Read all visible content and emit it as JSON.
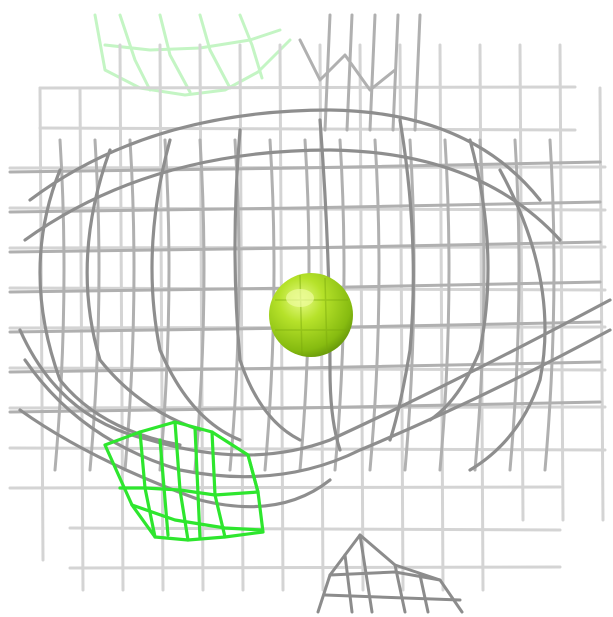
{
  "scene": {
    "kind": "molecular density mesh rendering",
    "background_color": "#ffffff",
    "colors": {
      "mesh_dark": "#8a8a8a",
      "mesh_mid": "#b4b4b4",
      "mesh_light": "#d6d6d6",
      "mesh_faint": "#e8e8e8",
      "green_mesh": "#2fe62f",
      "green_mesh_faint": "#bff5bf",
      "sphere_main": "#9acd1a",
      "sphere_highlight": "#d8f56a",
      "sphere_shadow": "#5f8f08"
    },
    "objects": [
      "grey-wireframe-mesh",
      "central-green-sphere",
      "bright-green-mesh-patch",
      "faint-green-mesh",
      "lower-mesh-fragment"
    ]
  }
}
